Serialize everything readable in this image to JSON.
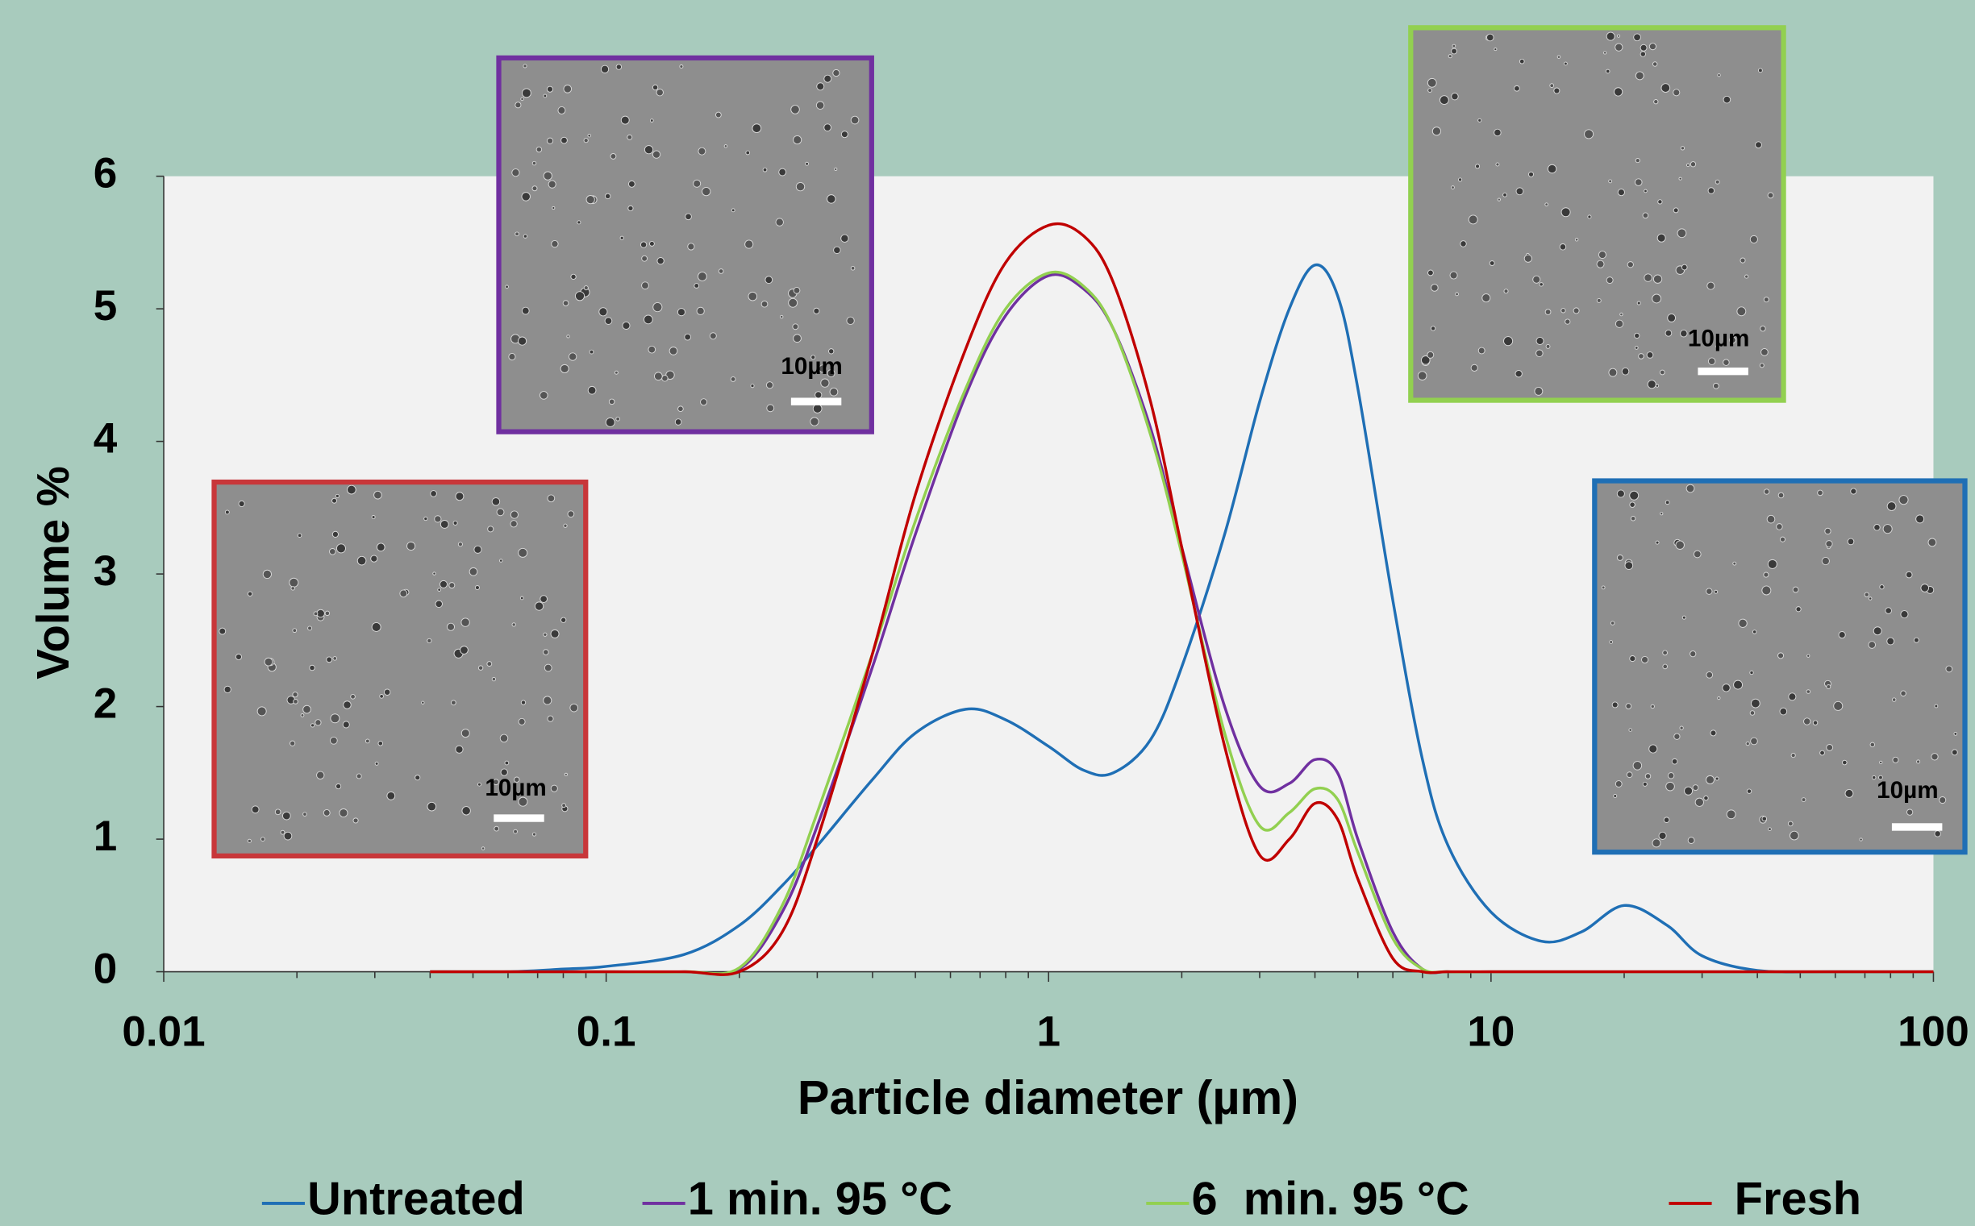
{
  "chart_data": {
    "type": "line",
    "x_label": "Particle diameter (µm)",
    "y_label": "Volume %",
    "xscale": "log",
    "xlim": [
      0.01,
      100
    ],
    "xticks": [
      0.01,
      0.1,
      1,
      10,
      100
    ],
    "xminor_ticks": [
      0.02,
      0.03,
      0.04,
      0.05,
      0.06,
      0.07,
      0.08,
      0.09,
      0.2,
      0.3,
      0.4,
      0.5,
      0.6,
      0.7,
      0.8,
      0.9,
      2,
      3,
      4,
      5,
      6,
      7,
      8,
      9,
      20,
      30,
      40,
      50,
      60,
      70,
      80,
      90
    ],
    "ylim": [
      0,
      6
    ],
    "yticks": [
      0,
      1,
      2,
      3,
      4,
      5,
      6
    ],
    "grid": false,
    "legend": "bottom",
    "x": [
      0.04,
      0.06,
      0.08,
      0.1,
      0.15,
      0.2,
      0.25,
      0.3,
      0.4,
      0.5,
      0.65,
      0.8,
      1,
      1.2,
      1.4,
      1.7,
      2,
      2.5,
      3,
      3.5,
      4,
      4.5,
      5,
      6,
      7,
      8,
      10,
      13,
      16,
      20,
      25,
      30,
      40,
      60,
      100
    ],
    "series": [
      {
        "name": "Untreated",
        "color": "#1f6fb5",
        "values": [
          0,
          0,
          0.02,
          0.04,
          0.13,
          0.35,
          0.65,
          0.95,
          1.45,
          1.8,
          1.98,
          1.9,
          1.7,
          1.52,
          1.5,
          1.75,
          2.3,
          3.3,
          4.3,
          5.0,
          5.33,
          5.1,
          4.4,
          2.8,
          1.6,
          0.95,
          0.45,
          0.23,
          0.3,
          0.5,
          0.35,
          0.12,
          0.01,
          0,
          0
        ]
      },
      {
        "name": "1 min. 95 °C",
        "color": "#7030a0",
        "values": [
          0,
          0,
          0,
          0,
          0,
          0.02,
          0.45,
          1.1,
          2.3,
          3.3,
          4.35,
          4.95,
          5.25,
          5.15,
          4.85,
          4.1,
          3.2,
          2.0,
          1.4,
          1.42,
          1.6,
          1.5,
          1.0,
          0.3,
          0.02,
          0,
          0,
          0,
          0,
          0,
          0,
          0,
          0,
          0,
          0
        ]
      },
      {
        "name": "6  min. 95 °C",
        "color": "#92d050",
        "values": [
          0,
          0,
          0,
          0,
          0,
          0.03,
          0.5,
          1.2,
          2.4,
          3.4,
          4.4,
          5.0,
          5.27,
          5.17,
          4.85,
          4.05,
          3.15,
          1.8,
          1.1,
          1.2,
          1.38,
          1.3,
          0.9,
          0.25,
          0.02,
          0,
          0,
          0,
          0,
          0,
          0,
          0,
          0,
          0,
          0
        ]
      },
      {
        "name": "Fresh",
        "color": "#c00000",
        "values": [
          0,
          0,
          0,
          0,
          0,
          0,
          0.3,
          1.0,
          2.4,
          3.6,
          4.7,
          5.35,
          5.63,
          5.55,
          5.2,
          4.3,
          3.2,
          1.7,
          0.88,
          1.0,
          1.27,
          1.15,
          0.7,
          0.1,
          0,
          0,
          0,
          0,
          0,
          0,
          0,
          0,
          0,
          0,
          0
        ]
      }
    ],
    "insets": [
      {
        "scale_label": "10µm",
        "color": "#7030a0"
      },
      {
        "scale_label": "10µm",
        "color": "#92d050"
      },
      {
        "scale_label": "10µm",
        "color": "#c8373a"
      },
      {
        "scale_label": "10µm",
        "color": "#1f6fb5"
      }
    ]
  }
}
